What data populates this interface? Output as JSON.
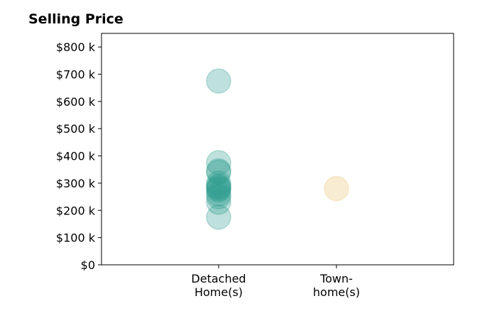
{
  "chart_data": {
    "type": "scatter",
    "title": "Selling Price",
    "xlabel": "",
    "ylabel": "",
    "categories": [
      "Detached\nHome(s)",
      "Town-\nhome(s)"
    ],
    "ylim": [
      0,
      850000
    ],
    "yticks": [
      {
        "value": 0,
        "label": "$0"
      },
      {
        "value": 100000,
        "label": "$100 k"
      },
      {
        "value": 200000,
        "label": "$200 k"
      },
      {
        "value": 300000,
        "label": "$300 k"
      },
      {
        "value": 400000,
        "label": "$400 k"
      },
      {
        "value": 500000,
        "label": "$500 k"
      },
      {
        "value": 600000,
        "label": "$600 k"
      },
      {
        "value": 700000,
        "label": "$700 k"
      },
      {
        "value": 800000,
        "label": "$800 k"
      }
    ],
    "series": [
      {
        "category": "Detached\nHome(s)",
        "color": "#2a9d8f",
        "values": [
          675000,
          375000,
          345000,
          340000,
          300000,
          290000,
          285000,
          280000,
          275000,
          260000,
          250000,
          230000,
          175000
        ]
      },
      {
        "category": "Town-\nhome(s)",
        "color": "#e9c46a",
        "values": [
          280000
        ]
      }
    ],
    "grid": false,
    "legend": "none"
  }
}
